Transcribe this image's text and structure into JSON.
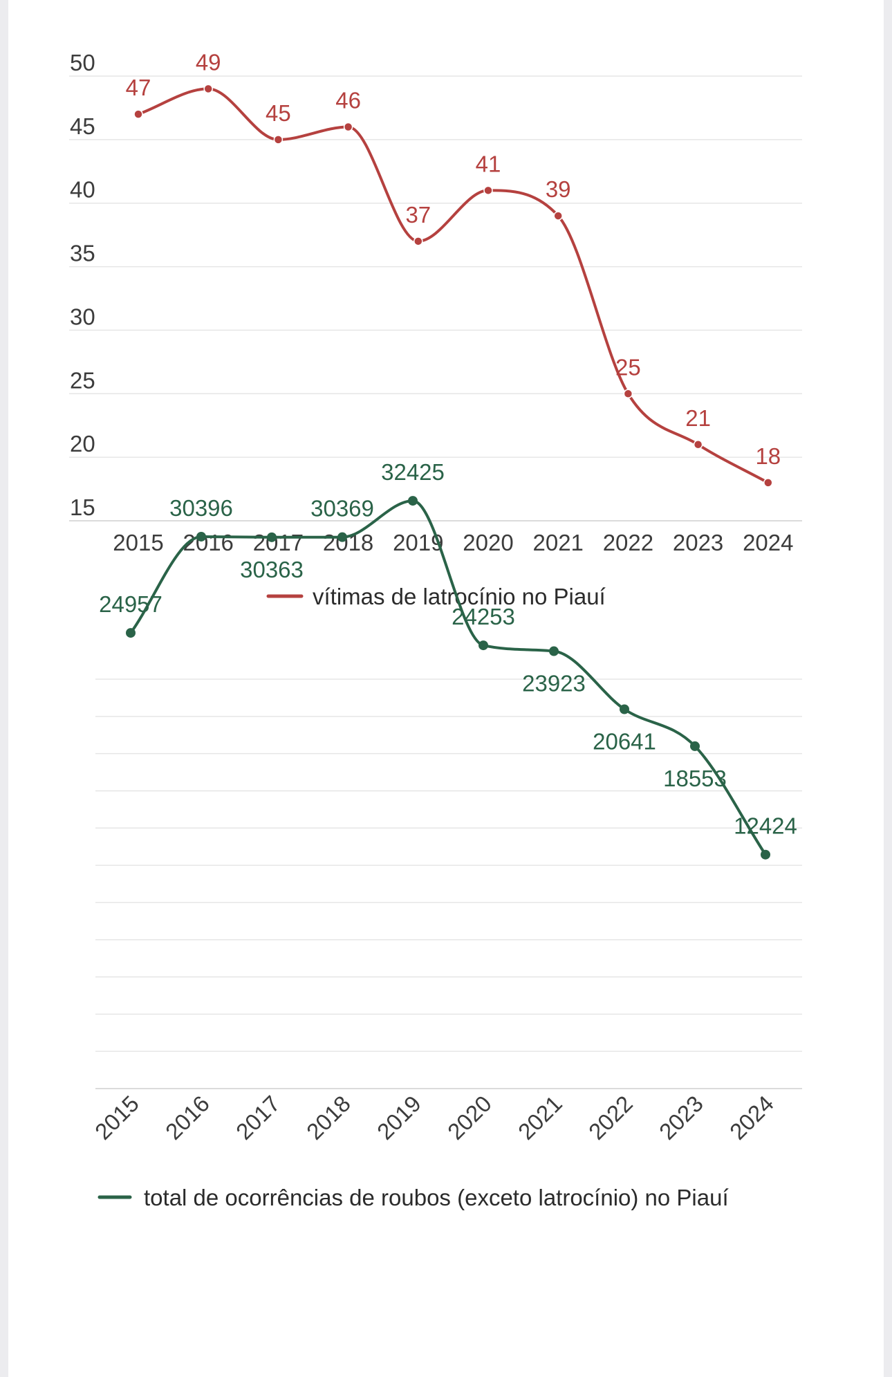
{
  "chart_data": [
    {
      "type": "line",
      "smooth": true,
      "categories": [
        "2015",
        "2016",
        "2017",
        "2018",
        "2019",
        "2020",
        "2021",
        "2022",
        "2023",
        "2024"
      ],
      "series": [
        {
          "name": "vítimas de latrocínio no Piauí",
          "values": [
            47,
            49,
            45,
            46,
            37,
            41,
            39,
            25,
            21,
            18
          ],
          "labels": [
            "47",
            "49",
            "45",
            "46",
            "37",
            "41",
            "39",
            "25",
            "21",
            "18"
          ],
          "color": "#b5413f"
        }
      ],
      "yticks": [
        "50",
        "45",
        "40",
        "35",
        "30",
        "25",
        "20",
        "15"
      ],
      "ytick_values": [
        50,
        45,
        40,
        35,
        30,
        25,
        20,
        15
      ],
      "ylim": [
        15,
        50
      ],
      "grid": true,
      "legend": "bottom-center"
    },
    {
      "type": "line",
      "smooth": true,
      "categories": [
        "2015",
        "2016",
        "2017",
        "2018",
        "2019",
        "2020",
        "2021",
        "2022",
        "2023",
        "2024"
      ],
      "series": [
        {
          "name": "total de ocorrências de roubos (exceto latrocínio) no Piauí",
          "values": [
            24957,
            30396,
            30363,
            30369,
            32425,
            24253,
            23923,
            20641,
            18553,
            12424
          ],
          "labels": [
            "24957",
            "30396",
            "30363",
            "30369",
            "32425",
            "24253",
            "23923",
            "20641",
            "18553",
            "12424"
          ],
          "color": "#2a6348"
        }
      ],
      "ylim": [
        11000,
        34000
      ],
      "yaxis_labels": false,
      "xtick_rotation": -45,
      "grid": true,
      "legend": "bottom-center"
    }
  ]
}
